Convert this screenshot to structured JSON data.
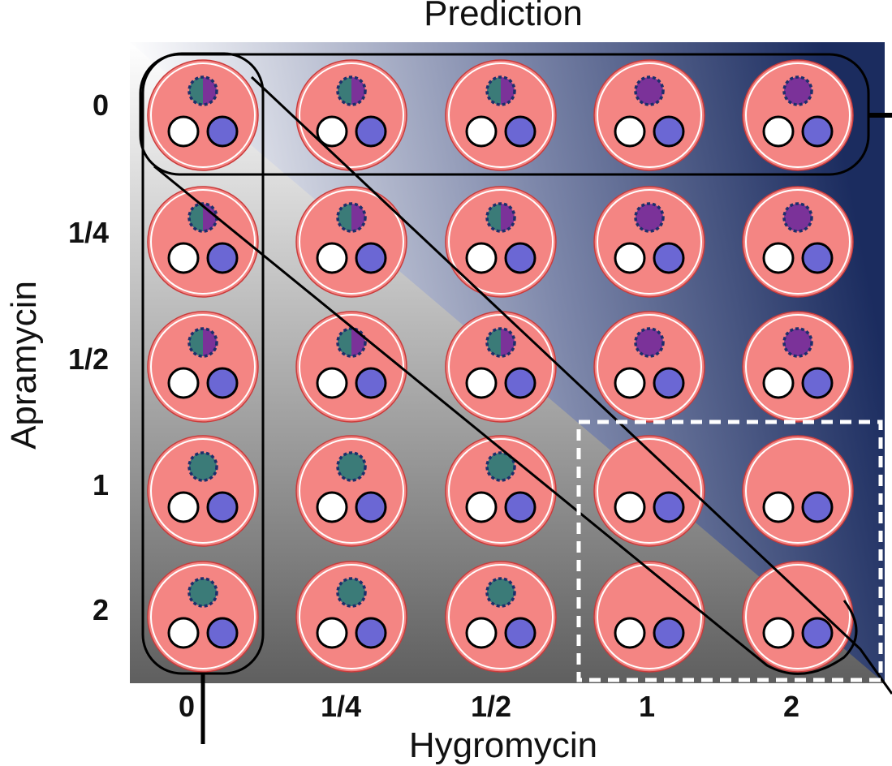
{
  "title": "Prediction",
  "y_axis_label": "Apramycin",
  "x_axis_label": "Hygromycin",
  "x_ticks": [
    "0",
    "1/4",
    "1/2",
    "1",
    "2"
  ],
  "y_ticks": [
    "0",
    "1/4",
    "1/2",
    "1",
    "2"
  ],
  "colors": {
    "cell_fill": "#f48583",
    "cell_ring": "#ffffff",
    "teal_state": "#3b7b78",
    "purple_state": "#7b3299",
    "white_dot": "#ffffff",
    "blue_dot": "#6b67d4",
    "background_top_right": "#1b2c5f",
    "background_bottom": "#5f5f5f"
  },
  "grid": {
    "rows": [
      [
        "mixed",
        "mixed",
        "mixed",
        "purple",
        "purple"
      ],
      [
        "mixed",
        "mixed",
        "mixed",
        "purple",
        "purple"
      ],
      [
        "mixed",
        "mixed",
        "mixed",
        "purple",
        "purple"
      ],
      [
        "teal",
        "teal",
        "teal",
        "none",
        "none"
      ],
      [
        "teal",
        "teal",
        "teal",
        "none",
        "none"
      ]
    ]
  }
}
